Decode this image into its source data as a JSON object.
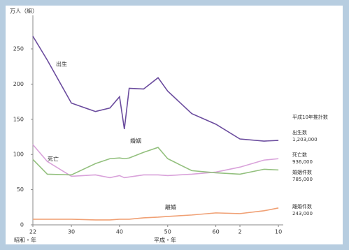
{
  "chart_data": {
    "type": "line",
    "y_label": "万人（組）",
    "x_label_left": "昭和・年",
    "x_label_right": "平成・年",
    "x": [
      1947,
      1950,
      1955,
      1960,
      1963,
      1965,
      1966,
      1967,
      1970,
      1973,
      1975,
      1980,
      1985,
      1990,
      1995,
      1998
    ],
    "series": [
      {
        "name": "出生",
        "color": "#6b4c9e",
        "values": [
          268,
          234,
          173,
          161,
          166,
          182,
          136,
          194,
          193,
          209,
          190,
          158,
          143,
          122,
          119,
          120
        ]
      },
      {
        "name": "死亡",
        "color": "#d9a2da",
        "values": [
          114,
          90,
          69,
          71,
          67,
          70,
          67,
          68,
          71,
          71,
          70,
          72,
          75,
          82,
          92,
          94
        ]
      },
      {
        "name": "婚姻",
        "color": "#93c07e",
        "values": [
          93,
          72,
          71,
          87,
          94,
          95,
          94,
          95,
          103,
          110,
          94,
          77,
          74,
          72,
          79,
          78
        ]
      },
      {
        "name": "離婚",
        "color": "#f0a074",
        "values": [
          8,
          8,
          8,
          7,
          7,
          8,
          8,
          8,
          10,
          11,
          12,
          14,
          17,
          16,
          20,
          24
        ]
      }
    ],
    "xlim": [
      1947,
      1999
    ],
    "xticks": [
      {
        "value": 1947,
        "label": "22"
      },
      {
        "value": 1955,
        "label": "30"
      },
      {
        "value": 1965,
        "label": "40"
      },
      {
        "value": 1975,
        "label": "50"
      },
      {
        "value": 1985,
        "label": "60"
      },
      {
        "value": 1990,
        "label": "2"
      },
      {
        "value": 1998,
        "label": "10"
      }
    ],
    "ylim": [
      0,
      250
    ],
    "yticks": [
      0,
      50,
      100,
      150,
      200,
      250
    ],
    "annotations": [
      "平成10年推計数",
      "出生数",
      "1,203,000",
      "死亡数",
      "936,000",
      "婚姻件数",
      "785,000",
      "離婚件数",
      "243,000"
    ]
  }
}
